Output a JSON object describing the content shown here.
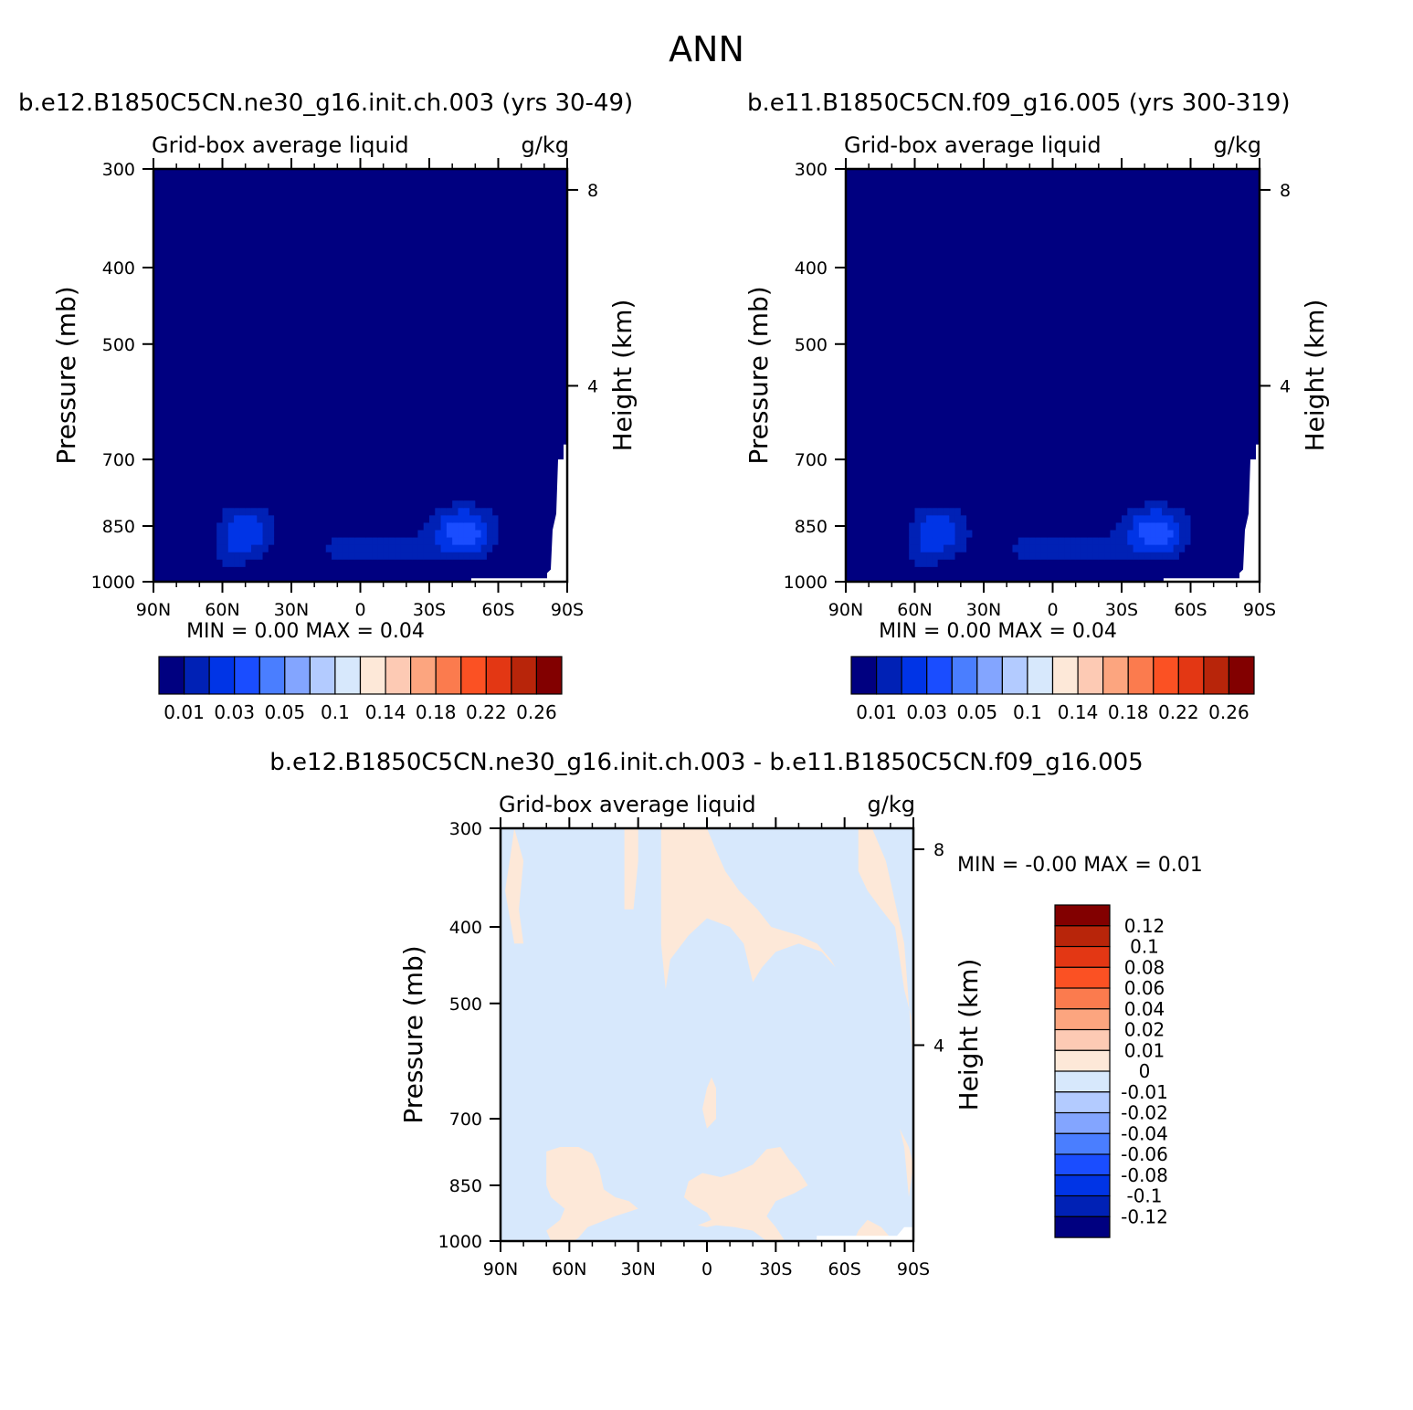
{
  "figure": {
    "title": "ANN"
  },
  "colors": {
    "scale_abs": [
      "#000080",
      "#0021b5",
      "#0034e6",
      "#1a4dff",
      "#4a7eff",
      "#83a5ff",
      "#b3cbff",
      "#d7e8fc",
      "#fde8d8",
      "#fdcab4",
      "#fca57f",
      "#fb7b4e",
      "#fb5123",
      "#e33714",
      "#b8250a",
      "#820000"
    ],
    "scale_diff": [
      "#000080",
      "#0021b5",
      "#0034e6",
      "#1a4dff",
      "#4a7eff",
      "#83a5ff",
      "#b3cbff",
      "#d7e8fc",
      "#fde8d8",
      "#fdcab4",
      "#fca57f",
      "#fb7b4e",
      "#fb5123",
      "#e33714",
      "#b8250a",
      "#820000"
    ],
    "missing": "#ffffff"
  },
  "chart_data": [
    {
      "type": "heatmap",
      "title": "b.e12.B1850C5CN.ne30_g16.init.ch.003 (yrs 30-49)",
      "subtitle_left": "Grid-box average liquid",
      "subtitle_right": "g/kg",
      "xlabel": "",
      "ylabel": "Pressure (mb)",
      "y2label": "Height (km)",
      "x_ticks": [
        "90N",
        "60N",
        "30N",
        "0",
        "30S",
        "60S",
        "90S"
      ],
      "y_ticks": [
        "300",
        "400",
        "500",
        "700",
        "850",
        "1000"
      ],
      "y_tick_values": [
        300,
        400,
        500,
        700,
        850,
        1000
      ],
      "y2_ticks": [
        "8",
        "4"
      ],
      "y2_tick_values": [
        8,
        4
      ],
      "ylim": [
        300,
        1000
      ],
      "stats_text": "MIN =    0.00   MAX =    0.04",
      "min": 0.0,
      "max": 0.04,
      "colorbar": {
        "orientation": "horizontal",
        "labels": [
          "0.01",
          "0.03",
          "0.05",
          "0.1",
          "0.14",
          "0.18",
          "0.22",
          "0.26"
        ],
        "levels": [
          0.01,
          0.02,
          0.03,
          0.04,
          0.05,
          0.07,
          0.1,
          0.12,
          0.14,
          0.16,
          0.18,
          0.2,
          0.22,
          0.24,
          0.26
        ]
      },
      "features": [
        {
          "lat": -45,
          "p": 860,
          "value": 0.035,
          "note": "SH maximum"
        },
        {
          "lat": 45,
          "p": 860,
          "value": 0.025,
          "note": "NH maximum"
        },
        {
          "lat": 0,
          "p": 900,
          "value": 0.015,
          "note": "tropical boundary layer"
        }
      ]
    },
    {
      "type": "heatmap",
      "title": "b.e11.B1850C5CN.f09_g16.005 (yrs 300-319)",
      "subtitle_left": "Grid-box average liquid",
      "subtitle_right": "g/kg",
      "xlabel": "",
      "ylabel": "Pressure (mb)",
      "y2label": "Height (km)",
      "x_ticks": [
        "90N",
        "60N",
        "30N",
        "0",
        "30S",
        "60S",
        "90S"
      ],
      "y_ticks": [
        "300",
        "400",
        "500",
        "700",
        "850",
        "1000"
      ],
      "y_tick_values": [
        300,
        400,
        500,
        700,
        850,
        1000
      ],
      "y2_ticks": [
        "8",
        "4"
      ],
      "y2_tick_values": [
        8,
        4
      ],
      "ylim": [
        300,
        1000
      ],
      "stats_text": "MIN =    0.00   MAX =    0.04",
      "min": 0.0,
      "max": 0.04,
      "colorbar": {
        "orientation": "horizontal",
        "labels": [
          "0.01",
          "0.03",
          "0.05",
          "0.1",
          "0.14",
          "0.18",
          "0.22",
          "0.26"
        ],
        "levels": [
          0.01,
          0.02,
          0.03,
          0.04,
          0.05,
          0.07,
          0.1,
          0.12,
          0.14,
          0.16,
          0.18,
          0.2,
          0.22,
          0.24,
          0.26
        ]
      },
      "features": [
        {
          "lat": -45,
          "p": 860,
          "value": 0.035,
          "note": "SH maximum"
        },
        {
          "lat": 45,
          "p": 860,
          "value": 0.025,
          "note": "NH maximum"
        },
        {
          "lat": 0,
          "p": 910,
          "value": 0.015,
          "note": "tropical boundary layer"
        }
      ]
    },
    {
      "type": "heatmap",
      "title": "b.e12.B1850C5CN.ne30_g16.init.ch.003 - b.e11.B1850C5CN.f09_g16.005",
      "subtitle_left": "Grid-box average liquid",
      "subtitle_right": "g/kg",
      "xlabel": "",
      "ylabel": "Pressure (mb)",
      "y2label": "Height (km)",
      "x_ticks": [
        "90N",
        "60N",
        "30N",
        "0",
        "30S",
        "60S",
        "90S"
      ],
      "y_ticks": [
        "300",
        "400",
        "500",
        "700",
        "850",
        "1000"
      ],
      "y_tick_values": [
        300,
        400,
        500,
        700,
        850,
        1000
      ],
      "y2_ticks": [
        "8",
        "4"
      ],
      "y2_tick_values": [
        8,
        4
      ],
      "ylim": [
        300,
        1000
      ],
      "stats_text": "MIN =   -0.00   MAX =    0.01",
      "min": -0.0,
      "max": 0.01,
      "colorbar": {
        "orientation": "vertical",
        "labels": [
          "0.12",
          "0.1",
          "0.08",
          "0.06",
          "0.04",
          "0.02",
          "0.01",
          "0",
          "-0.01",
          "-0.02",
          "-0.04",
          "-0.06",
          "-0.08",
          "-0.1",
          "-0.12"
        ],
        "levels": [
          0.12,
          0.1,
          0.08,
          0.06,
          0.04,
          0.02,
          0.01,
          0,
          -0.01,
          -0.02,
          -0.04,
          -0.06,
          -0.08,
          -0.1,
          -0.12
        ]
      },
      "features": [
        {
          "lat": 55,
          "p": 800,
          "value": 0.005,
          "note": "positive difference"
        },
        {
          "lat": -20,
          "p": 800,
          "value": 0.005,
          "note": "positive difference"
        },
        {
          "lat": 0,
          "p": 600,
          "value": -0.005,
          "note": "negative difference"
        }
      ]
    }
  ]
}
